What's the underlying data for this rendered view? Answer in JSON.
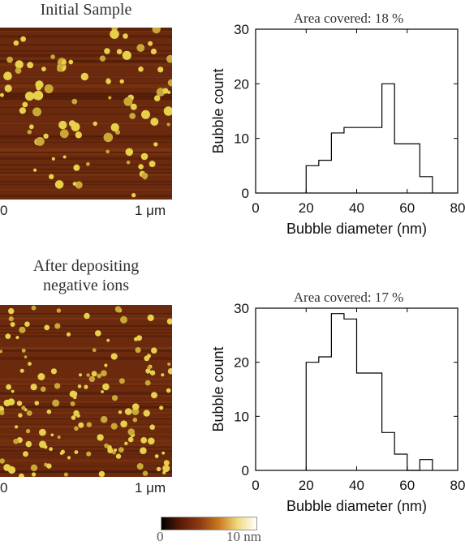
{
  "panels": [
    {
      "title": "Initial Sample",
      "afm_axis": {
        "left": "0",
        "right": "1 μm"
      }
    },
    {
      "title": "After depositing negative ions",
      "afm_axis": {
        "left": "0",
        "right": "1 μm"
      }
    }
  ],
  "colorbar": {
    "min_label": "0",
    "max_label": "10 nm",
    "colors": [
      "#000000",
      "#5a1a08",
      "#8b3a14",
      "#c8781e",
      "#f2d87e",
      "#ffffff"
    ]
  },
  "chart_data": [
    {
      "type": "histogram",
      "annotation": "Area covered: 18 %",
      "xlabel": "Bubble diameter (nm)",
      "ylabel": "Bubble count",
      "xlim": [
        0,
        80
      ],
      "ylim": [
        0,
        30
      ],
      "xticks": [
        0,
        20,
        40,
        60,
        80
      ],
      "yticks": [
        0,
        10,
        20,
        30
      ],
      "grid": false,
      "bins": [
        {
          "x0": 20,
          "x1": 25,
          "count": 5
        },
        {
          "x0": 25,
          "x1": 30,
          "count": 6
        },
        {
          "x0": 30,
          "x1": 35,
          "count": 11
        },
        {
          "x0": 35,
          "x1": 40,
          "count": 12
        },
        {
          "x0": 40,
          "x1": 45,
          "count": 12
        },
        {
          "x0": 45,
          "x1": 50,
          "count": 12
        },
        {
          "x0": 50,
          "x1": 55,
          "count": 20
        },
        {
          "x0": 55,
          "x1": 60,
          "count": 9
        },
        {
          "x0": 60,
          "x1": 65,
          "count": 9
        },
        {
          "x0": 65,
          "x1": 70,
          "count": 3
        }
      ]
    },
    {
      "type": "histogram",
      "annotation": "Area covered: 17 %",
      "xlabel": "Bubble diameter (nm)",
      "ylabel": "Bubble count",
      "xlim": [
        0,
        80
      ],
      "ylim": [
        0,
        30
      ],
      "xticks": [
        0,
        20,
        40,
        60,
        80
      ],
      "yticks": [
        0,
        10,
        20,
        30
      ],
      "grid": false,
      "bins": [
        {
          "x0": 20,
          "x1": 25,
          "count": 20
        },
        {
          "x0": 25,
          "x1": 30,
          "count": 21
        },
        {
          "x0": 30,
          "x1": 35,
          "count": 29
        },
        {
          "x0": 35,
          "x1": 40,
          "count": 28
        },
        {
          "x0": 40,
          "x1": 45,
          "count": 18
        },
        {
          "x0": 45,
          "x1": 50,
          "count": 18
        },
        {
          "x0": 50,
          "x1": 55,
          "count": 7
        },
        {
          "x0": 55,
          "x1": 60,
          "count": 3
        },
        {
          "x0": 60,
          "x1": 65,
          "count": 0
        },
        {
          "x0": 65,
          "x1": 70,
          "count": 2
        }
      ]
    }
  ]
}
